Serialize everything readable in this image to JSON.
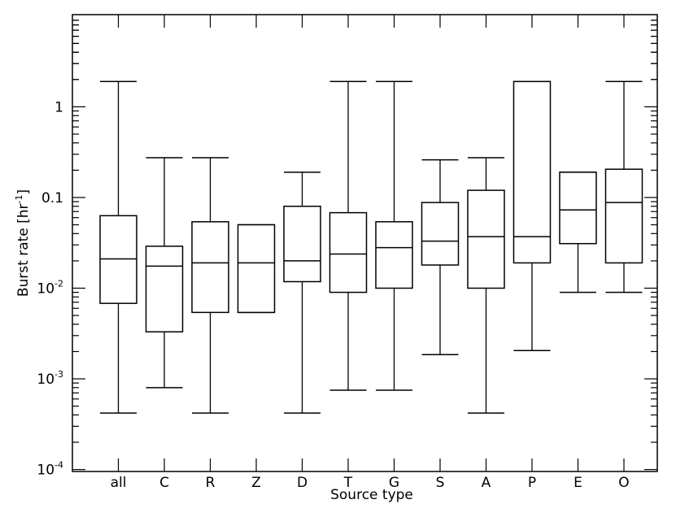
{
  "chart_data": {
    "type": "box",
    "xlabel": "Source type",
    "ylabel_main": "Burst rate [hr",
    "ylabel_sup": "-1",
    "ylabel_end": "]",
    "yscale": "log",
    "ylim": [
      0.0001,
      10
    ],
    "yticks": [
      {
        "value": 1,
        "base": "1",
        "sup": ""
      },
      {
        "value": 0.1,
        "base": "0.1",
        "sup": ""
      },
      {
        "value": 0.01,
        "base": "10",
        "sup": "-2"
      },
      {
        "value": 0.001,
        "base": "10",
        "sup": "-3"
      },
      {
        "value": 0.0001,
        "base": "10",
        "sup": "-4"
      }
    ],
    "categories": [
      "all",
      "C",
      "R",
      "Z",
      "D",
      "T",
      "G",
      "S",
      "A",
      "P",
      "E",
      "O"
    ],
    "boxes": [
      {
        "min": 0.00042,
        "q1": 0.0068,
        "median": 0.021,
        "q3": 0.063,
        "max": 1.9
      },
      {
        "min": 0.0008,
        "q1": 0.0033,
        "median": 0.0175,
        "q3": 0.029,
        "max": 0.275
      },
      {
        "min": 0.00042,
        "q1": 0.0054,
        "median": 0.019,
        "q3": 0.054,
        "max": 0.275
      },
      {
        "min": 0.0054,
        "q1": 0.0054,
        "median": 0.019,
        "q3": 0.05,
        "max": 0.05
      },
      {
        "min": 0.00042,
        "q1": 0.0118,
        "median": 0.02,
        "q3": 0.08,
        "max": 0.19
      },
      {
        "min": 0.00075,
        "q1": 0.009,
        "median": 0.0238,
        "q3": 0.068,
        "max": 1.9
      },
      {
        "min": 0.00075,
        "q1": 0.01,
        "median": 0.028,
        "q3": 0.054,
        "max": 1.9
      },
      {
        "min": 0.00185,
        "q1": 0.018,
        "median": 0.033,
        "q3": 0.088,
        "max": 0.26
      },
      {
        "min": 0.00042,
        "q1": 0.01,
        "median": 0.037,
        "q3": 0.12,
        "max": 0.275
      },
      {
        "min": 0.00205,
        "q1": 0.019,
        "median": 0.037,
        "q3": 1.9,
        "max": 1.9
      },
      {
        "min": 0.009,
        "q1": 0.031,
        "median": 0.073,
        "q3": 0.19,
        "max": 0.19
      },
      {
        "min": 0.009,
        "q1": 0.019,
        "median": 0.088,
        "q3": 0.205,
        "max": 1.9
      }
    ],
    "grid": false,
    "legend": "none"
  }
}
